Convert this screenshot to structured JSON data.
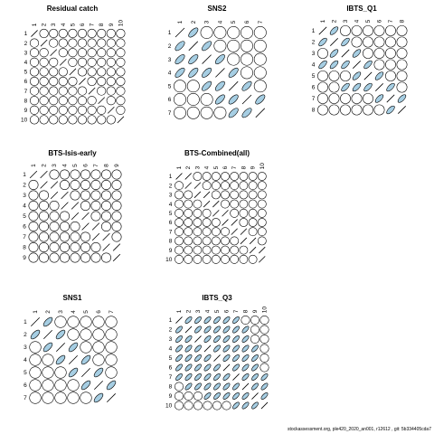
{
  "footer": "stockassessment.org, ple420_2020_an001, r12612 , git: 5b334405cda7",
  "colors": {
    "fill": "#a6cee3",
    "stroke": "#000000",
    "background": "#ffffff"
  },
  "chart_data": [
    {
      "type": "correlation-ellipse-matrix",
      "title": "Residual catch",
      "labels": [
        "1",
        "2",
        "3",
        "4",
        "5",
        "6",
        "7",
        "8",
        "9",
        "10"
      ],
      "n": 10,
      "fill_cells": [],
      "slash_cells": [
        [
          10,
          10
        ]
      ]
    },
    {
      "type": "correlation-ellipse-matrix",
      "title": "SNS2",
      "labels": [
        "1",
        "2",
        "3",
        "4",
        "5",
        "6",
        "7"
      ],
      "n": 7,
      "fill_cells": [
        [
          1,
          2
        ],
        [
          2,
          1
        ],
        [
          2,
          3
        ],
        [
          3,
          1
        ],
        [
          3,
          2
        ],
        [
          3,
          4
        ],
        [
          4,
          1
        ],
        [
          4,
          2
        ],
        [
          4,
          3
        ],
        [
          4,
          5
        ],
        [
          5,
          3
        ],
        [
          5,
          4
        ],
        [
          5,
          6
        ],
        [
          6,
          4
        ],
        [
          6,
          5
        ],
        [
          6,
          7
        ],
        [
          7,
          5
        ],
        [
          7,
          6
        ]
      ],
      "slash_cells": []
    },
    {
      "type": "correlation-ellipse-matrix",
      "title": "IBTS_Q1",
      "labels": [
        "1",
        "2",
        "3",
        "4",
        "5",
        "6",
        "7",
        "8"
      ],
      "n": 8,
      "fill_cells": [
        [
          1,
          2
        ],
        [
          2,
          1
        ],
        [
          2,
          3
        ],
        [
          3,
          2
        ],
        [
          3,
          4
        ],
        [
          4,
          1
        ],
        [
          4,
          2
        ],
        [
          4,
          3
        ],
        [
          4,
          5
        ],
        [
          5,
          4
        ],
        [
          5,
          6
        ],
        [
          6,
          3
        ],
        [
          6,
          4
        ],
        [
          6,
          5
        ],
        [
          6,
          7
        ],
        [
          7,
          6
        ],
        [
          7,
          8
        ],
        [
          8,
          7
        ]
      ],
      "slash_cells": []
    },
    {
      "type": "correlation-ellipse-matrix",
      "title": "BTS-Isis-early",
      "labels": [
        "1",
        "2",
        "3",
        "4",
        "5",
        "6",
        "7",
        "8",
        "9"
      ],
      "n": 9,
      "fill_cells": [],
      "slash_cells": [
        [
          1,
          2
        ],
        [
          2,
          3
        ],
        [
          3,
          4
        ],
        [
          4,
          5
        ],
        [
          5,
          6
        ],
        [
          6,
          7
        ],
        [
          7,
          8
        ],
        [
          8,
          9
        ]
      ]
    },
    {
      "type": "correlation-ellipse-matrix",
      "title": "BTS-Combined(all)",
      "labels": [
        "1",
        "2",
        "3",
        "4",
        "5",
        "6",
        "7",
        "8",
        "9",
        "10"
      ],
      "n": 10,
      "fill_cells": [],
      "slash_cells": [
        [
          1,
          2
        ],
        [
          2,
          3
        ],
        [
          3,
          4
        ],
        [
          4,
          5
        ],
        [
          5,
          6
        ],
        [
          6,
          7
        ],
        [
          7,
          8
        ],
        [
          8,
          9
        ],
        [
          9,
          10
        ]
      ]
    },
    {
      "type": "correlation-ellipse-matrix",
      "title": "SNS1",
      "labels": [
        "1",
        "2",
        "3",
        "4",
        "5",
        "6",
        "7"
      ],
      "n": 7,
      "fill_cells": [
        [
          1,
          2
        ],
        [
          2,
          1
        ],
        [
          2,
          3
        ],
        [
          3,
          2
        ],
        [
          3,
          4
        ],
        [
          4,
          3
        ],
        [
          4,
          5
        ],
        [
          5,
          4
        ],
        [
          5,
          6
        ],
        [
          6,
          5
        ],
        [
          6,
          7
        ],
        [
          7,
          6
        ]
      ],
      "slash_cells": []
    },
    {
      "type": "correlation-ellipse-matrix",
      "title": "IBTS_Q3",
      "labels": [
        "1",
        "2",
        "3",
        "4",
        "5",
        "6",
        "7",
        "8",
        "9",
        "10"
      ],
      "n": 10,
      "fill_cells": [
        [
          1,
          2
        ],
        [
          1,
          3
        ],
        [
          1,
          4
        ],
        [
          1,
          5
        ],
        [
          1,
          6
        ],
        [
          1,
          7
        ],
        [
          2,
          1
        ],
        [
          2,
          3
        ],
        [
          2,
          4
        ],
        [
          2,
          5
        ],
        [
          2,
          6
        ],
        [
          2,
          7
        ],
        [
          2,
          8
        ],
        [
          3,
          1
        ],
        [
          3,
          2
        ],
        [
          3,
          4
        ],
        [
          3,
          5
        ],
        [
          3,
          6
        ],
        [
          3,
          7
        ],
        [
          3,
          8
        ],
        [
          4,
          1
        ],
        [
          4,
          2
        ],
        [
          4,
          3
        ],
        [
          4,
          5
        ],
        [
          4,
          6
        ],
        [
          4,
          7
        ],
        [
          4,
          8
        ],
        [
          4,
          9
        ],
        [
          5,
          1
        ],
        [
          5,
          2
        ],
        [
          5,
          3
        ],
        [
          5,
          4
        ],
        [
          5,
          6
        ],
        [
          5,
          7
        ],
        [
          5,
          8
        ],
        [
          5,
          9
        ],
        [
          6,
          1
        ],
        [
          6,
          2
        ],
        [
          6,
          3
        ],
        [
          6,
          4
        ],
        [
          6,
          5
        ],
        [
          6,
          7
        ],
        [
          6,
          8
        ],
        [
          6,
          9
        ],
        [
          7,
          1
        ],
        [
          7,
          2
        ],
        [
          7,
          3
        ],
        [
          7,
          4
        ],
        [
          7,
          5
        ],
        [
          7,
          6
        ],
        [
          7,
          8
        ],
        [
          7,
          9
        ],
        [
          7,
          10
        ],
        [
          8,
          2
        ],
        [
          8,
          3
        ],
        [
          8,
          4
        ],
        [
          8,
          5
        ],
        [
          8,
          6
        ],
        [
          8,
          7
        ],
        [
          8,
          9
        ],
        [
          8,
          10
        ],
        [
          9,
          4
        ],
        [
          9,
          5
        ],
        [
          9,
          6
        ],
        [
          9,
          7
        ],
        [
          9,
          8
        ],
        [
          9,
          10
        ],
        [
          10,
          7
        ],
        [
          10,
          8
        ],
        [
          10,
          9
        ]
      ],
      "slash_cells": []
    }
  ]
}
